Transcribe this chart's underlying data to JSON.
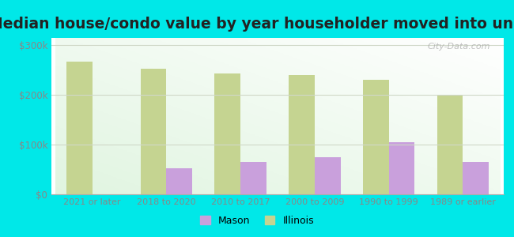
{
  "title": "Median house/condo value by year householder moved into unit",
  "categories": [
    "2021 or later",
    "2018 to 2020",
    "2010 to 2017",
    "2000 to 2009",
    "1990 to 1999",
    "1989 or earlier"
  ],
  "mason_values": [
    null,
    52000,
    65000,
    75000,
    105000,
    65000
  ],
  "illinois_values": [
    268000,
    253000,
    243000,
    241000,
    231000,
    200000
  ],
  "mason_color": "#c9a0dc",
  "illinois_color": "#c5d491",
  "background_outer": "#00e8e8",
  "background_inner_tl": "#e8f5e8",
  "background_inner_br": "#f8fff8",
  "ylim": [
    0,
    315000
  ],
  "yticks": [
    0,
    100000,
    200000,
    300000
  ],
  "ytick_labels": [
    "$0",
    "$100k",
    "$200k",
    "$300k"
  ],
  "legend_mason": "Mason",
  "legend_illinois": "Illinois",
  "watermark": "City-Data.com",
  "bar_width": 0.35,
  "title_fontsize": 13.5,
  "grid_color": "#d0d8c8",
  "tick_color": "#888888",
  "title_color": "#222222"
}
